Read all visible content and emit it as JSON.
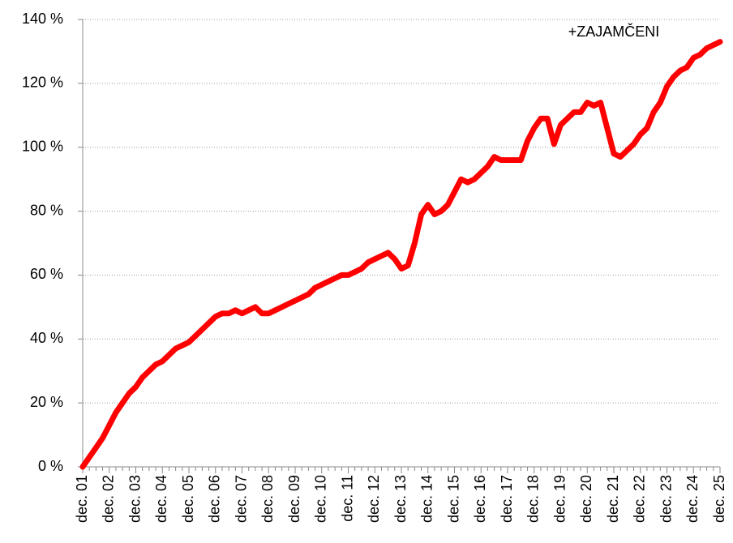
{
  "chart_data": {
    "type": "line",
    "annotation": "+ZAJAMČENI",
    "categories": [
      "dec. 01",
      null,
      null,
      null,
      "dec. 02",
      null,
      null,
      null,
      "dec. 03",
      null,
      null,
      null,
      "dec. 04",
      null,
      null,
      null,
      "dec. 05",
      null,
      null,
      null,
      "dec. 06",
      null,
      null,
      null,
      "dec. 07",
      null,
      null,
      null,
      "dec. 08",
      null,
      null,
      null,
      "dec. 09",
      null,
      null,
      null,
      "dec. 10",
      null,
      null,
      null,
      "dec. 11",
      null,
      null,
      null,
      "dec. 12",
      null,
      null,
      null,
      "dec. 13",
      null,
      null,
      null,
      "dec. 14",
      null,
      null,
      null,
      "dec. 15",
      null,
      null,
      null,
      "dec. 16",
      null,
      null,
      null,
      "dec. 17",
      null,
      null,
      null,
      "dec. 18",
      null,
      null,
      null,
      "dec. 19",
      null,
      null,
      null,
      "dec. 20",
      null,
      null,
      null,
      "dec. 21",
      null,
      null,
      null,
      "dec. 22",
      null,
      null,
      null,
      "dec. 23",
      null,
      null,
      null,
      "dec. 24",
      null,
      null,
      null,
      "dec. 25"
    ],
    "series": [
      {
        "color": "#ff0000",
        "values": [
          0,
          3,
          6,
          9,
          13,
          17,
          20,
          23,
          25,
          28,
          30,
          32,
          33,
          35,
          37,
          38,
          39,
          41,
          43,
          45,
          47,
          48,
          48,
          49,
          48,
          49,
          50,
          48,
          48,
          49,
          50,
          51,
          52,
          53,
          54,
          56,
          57,
          58,
          59,
          60,
          60,
          61,
          62,
          64,
          65,
          66,
          67,
          65,
          62,
          63,
          70,
          79,
          82,
          79,
          80,
          82,
          86,
          90,
          89,
          90,
          92,
          94,
          97,
          96,
          96,
          96,
          96,
          102,
          106,
          109,
          109,
          101,
          107,
          109,
          111,
          111,
          114,
          113,
          114,
          106,
          98,
          97,
          99,
          101,
          104,
          106,
          111,
          114,
          119,
          122,
          124,
          125,
          128,
          129,
          131,
          132,
          133
        ]
      }
    ],
    "ylim": [
      0,
      140
    ],
    "yticks": [
      {
        "value": 0,
        "label": "0 %"
      },
      {
        "value": 20,
        "label": "20 %"
      },
      {
        "value": 40,
        "label": "40 %"
      },
      {
        "value": 60,
        "label": "60 %"
      },
      {
        "value": 80,
        "label": "80 %"
      },
      {
        "value": 100,
        "label": "100 %"
      },
      {
        "value": 120,
        "label": "120 %"
      },
      {
        "value": 140,
        "label": "140 %"
      }
    ],
    "grid": true
  }
}
